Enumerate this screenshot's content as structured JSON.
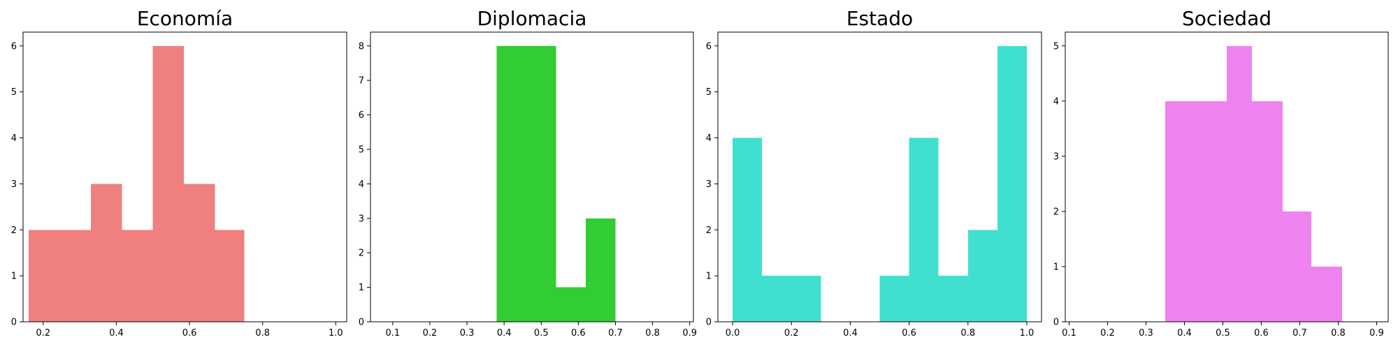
{
  "chart_data": [
    {
      "type": "bar",
      "title": "Economía",
      "color": "#f08080",
      "xlabel": "",
      "ylabel": "",
      "xlim": [
        0.145,
        1.03
      ],
      "ylim": [
        0,
        6.3
      ],
      "xticks": [
        0.2,
        0.4,
        0.6,
        0.8,
        1.0
      ],
      "xtick_labels": [
        "0.2",
        "0.4",
        "0.6",
        "0.8",
        "1.0"
      ],
      "yticks": [
        0,
        1,
        2,
        3,
        4,
        5,
        6
      ],
      "ytick_labels": [
        "0",
        "1",
        "2",
        "3",
        "4",
        "5",
        "6"
      ],
      "bins": [
        {
          "x0": 0.16,
          "x1": 0.245,
          "count": 2
        },
        {
          "x0": 0.245,
          "x1": 0.33,
          "count": 2
        },
        {
          "x0": 0.33,
          "x1": 0.415,
          "count": 3
        },
        {
          "x0": 0.415,
          "x1": 0.5,
          "count": 2
        },
        {
          "x0": 0.5,
          "x1": 0.585,
          "count": 6
        },
        {
          "x0": 0.585,
          "x1": 0.67,
          "count": 3
        },
        {
          "x0": 0.67,
          "x1": 0.75,
          "count": 2
        }
      ]
    },
    {
      "type": "bar",
      "title": "Diplomacia",
      "color": "#32cd32",
      "xlabel": "",
      "ylabel": "",
      "xlim": [
        0.04,
        0.91
      ],
      "ylim": [
        0,
        8.4
      ],
      "xticks": [
        0.1,
        0.2,
        0.3,
        0.4,
        0.5,
        0.6,
        0.7,
        0.8,
        0.9
      ],
      "xtick_labels": [
        "0.1",
        "0.2",
        "0.3",
        "0.4",
        "0.5",
        "0.6",
        "0.7",
        "0.8",
        "0.9"
      ],
      "yticks": [
        0,
        1,
        2,
        3,
        4,
        5,
        6,
        7,
        8
      ],
      "ytick_labels": [
        "0",
        "1",
        "2",
        "3",
        "4",
        "5",
        "6",
        "7",
        "8"
      ],
      "bins": [
        {
          "x0": 0.38,
          "x1": 0.46,
          "count": 8
        },
        {
          "x0": 0.46,
          "x1": 0.54,
          "count": 8
        },
        {
          "x0": 0.54,
          "x1": 0.62,
          "count": 1
        },
        {
          "x0": 0.62,
          "x1": 0.7,
          "count": 3
        }
      ]
    },
    {
      "type": "bar",
      "title": "Estado",
      "color": "#40e0d0",
      "xlabel": "",
      "ylabel": "",
      "xlim": [
        -0.05,
        1.05
      ],
      "ylim": [
        0,
        6.3
      ],
      "xticks": [
        0.0,
        0.2,
        0.4,
        0.6,
        0.8,
        1.0
      ],
      "xtick_labels": [
        "0.0",
        "0.2",
        "0.4",
        "0.6",
        "0.8",
        "1.0"
      ],
      "yticks": [
        0,
        1,
        2,
        3,
        4,
        5,
        6
      ],
      "ytick_labels": [
        "0",
        "1",
        "2",
        "3",
        "4",
        "5",
        "6"
      ],
      "bins": [
        {
          "x0": 0.0,
          "x1": 0.1,
          "count": 4
        },
        {
          "x0": 0.1,
          "x1": 0.2,
          "count": 1
        },
        {
          "x0": 0.2,
          "x1": 0.3,
          "count": 1
        },
        {
          "x0": 0.5,
          "x1": 0.6,
          "count": 1
        },
        {
          "x0": 0.6,
          "x1": 0.7,
          "count": 4
        },
        {
          "x0": 0.7,
          "x1": 0.8,
          "count": 1
        },
        {
          "x0": 0.8,
          "x1": 0.9,
          "count": 2
        },
        {
          "x0": 0.9,
          "x1": 1.0,
          "count": 6
        }
      ]
    },
    {
      "type": "bar",
      "title": "Sociedad",
      "color": "#ee82ee",
      "xlabel": "",
      "ylabel": "",
      "xlim": [
        0.09,
        0.93
      ],
      "ylim": [
        0,
        5.25
      ],
      "xticks": [
        0.1,
        0.2,
        0.3,
        0.4,
        0.5,
        0.6,
        0.7,
        0.8,
        0.9
      ],
      "xtick_labels": [
        "0.1",
        "0.2",
        "0.3",
        "0.4",
        "0.5",
        "0.6",
        "0.7",
        "0.8",
        "0.9"
      ],
      "yticks": [
        0,
        1,
        2,
        3,
        4,
        5
      ],
      "ytick_labels": [
        "0",
        "1",
        "2",
        "3",
        "4",
        "5"
      ],
      "bins": [
        {
          "x0": 0.35,
          "x1": 0.435,
          "count": 4
        },
        {
          "x0": 0.435,
          "x1": 0.51,
          "count": 4
        },
        {
          "x0": 0.51,
          "x1": 0.575,
          "count": 5
        },
        {
          "x0": 0.575,
          "x1": 0.655,
          "count": 4
        },
        {
          "x0": 0.655,
          "x1": 0.73,
          "count": 2
        },
        {
          "x0": 0.73,
          "x1": 0.81,
          "count": 1
        }
      ]
    }
  ]
}
